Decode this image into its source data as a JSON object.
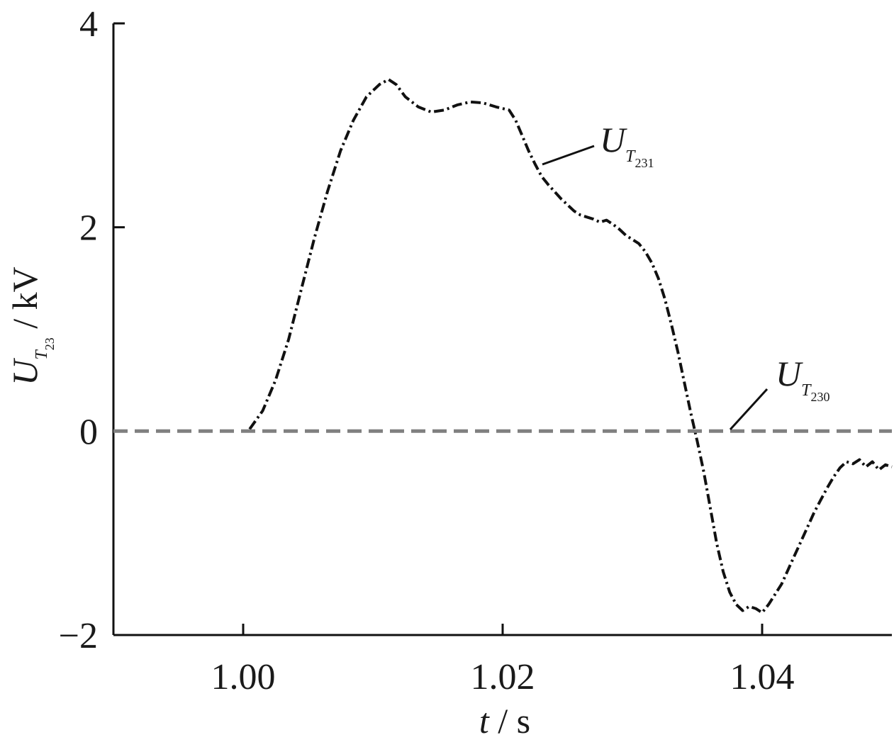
{
  "chart_data": {
    "type": "line",
    "xlim": [
      0.99,
      1.05
    ],
    "ylim": [
      -2,
      4
    ],
    "xticks": [
      1.0,
      1.02,
      1.04
    ],
    "xtick_labels": [
      "1.00",
      "1.02",
      "1.04"
    ],
    "yticks": [
      -2,
      0,
      2,
      4
    ],
    "ytick_labels": [
      "−2",
      "0",
      "2",
      "4"
    ],
    "xlabel": {
      "var": "t",
      "unit": " / s"
    },
    "ylabel": {
      "main": "U",
      "sub": "T",
      "subsub": "23",
      "unit": " / kV"
    },
    "grid": false,
    "series": [
      {
        "name": {
          "main": "U",
          "sub": "T",
          "subsub": "231"
        },
        "color": "#111111",
        "style": "dash-dot",
        "x": [
          1.0005,
          1.0015,
          1.0025,
          1.0035,
          1.0045,
          1.0055,
          1.0065,
          1.0075,
          1.0085,
          1.0095,
          1.0105,
          1.0112,
          1.0118,
          1.0125,
          1.0135,
          1.0145,
          1.0155,
          1.0165,
          1.0175,
          1.0185,
          1.0195,
          1.0205,
          1.021,
          1.0215,
          1.022,
          1.0225,
          1.023,
          1.0235,
          1.024,
          1.0245,
          1.025,
          1.0255,
          1.026,
          1.0265,
          1.027,
          1.0275,
          1.028,
          1.0285,
          1.029,
          1.0295,
          1.03,
          1.0305,
          1.031,
          1.0315,
          1.032,
          1.0325,
          1.033,
          1.0335,
          1.034,
          1.0345,
          1.035,
          1.0355,
          1.036,
          1.0365,
          1.037,
          1.0375,
          1.038,
          1.0385,
          1.039,
          1.0395,
          1.04,
          1.0405,
          1.041,
          1.0415,
          1.042,
          1.0425,
          1.043,
          1.0435,
          1.044,
          1.0445,
          1.045,
          1.0455,
          1.046,
          1.0465,
          1.047,
          1.0475,
          1.048,
          1.0485,
          1.049,
          1.0495,
          1.05
        ],
        "y": [
          0.02,
          0.2,
          0.5,
          0.9,
          1.4,
          1.9,
          2.35,
          2.75,
          3.05,
          3.28,
          3.4,
          3.45,
          3.4,
          3.28,
          3.18,
          3.13,
          3.15,
          3.2,
          3.23,
          3.22,
          3.18,
          3.15,
          3.05,
          2.9,
          2.75,
          2.62,
          2.5,
          2.42,
          2.35,
          2.28,
          2.22,
          2.16,
          2.12,
          2.1,
          2.08,
          2.05,
          2.07,
          2.03,
          1.98,
          1.92,
          1.88,
          1.84,
          1.76,
          1.65,
          1.5,
          1.3,
          1.05,
          0.78,
          0.48,
          0.18,
          -0.1,
          -0.4,
          -0.75,
          -1.1,
          -1.38,
          -1.58,
          -1.7,
          -1.76,
          -1.72,
          -1.74,
          -1.78,
          -1.7,
          -1.6,
          -1.5,
          -1.36,
          -1.22,
          -1.08,
          -0.94,
          -0.8,
          -0.68,
          -0.56,
          -0.45,
          -0.36,
          -0.3,
          -0.32,
          -0.28,
          -0.35,
          -0.3,
          -0.38,
          -0.33,
          -0.35
        ]
      },
      {
        "name": {
          "main": "U",
          "sub": "T",
          "subsub": "230"
        },
        "color": "#808080",
        "style": "dashed",
        "x": [
          0.99,
          1.05
        ],
        "y": [
          0,
          0
        ]
      }
    ]
  }
}
